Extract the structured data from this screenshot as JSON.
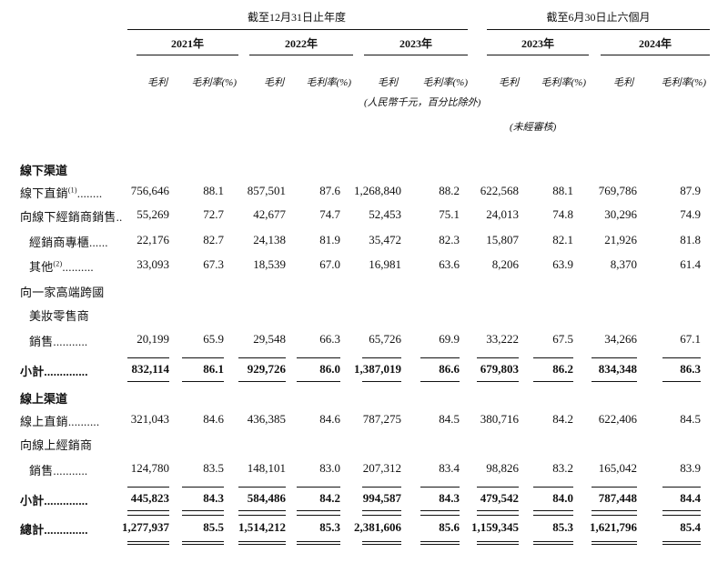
{
  "header": {
    "group_fy": "截至12月31日止年度",
    "group_hy": "截至6月30日止六個月",
    "years": [
      "2021年",
      "2022年",
      "2023年",
      "2023年",
      "2024年"
    ],
    "col_gp": "毛利",
    "col_gm": "毛利率(%)",
    "unit_note": "(人民幣千元，百分比除外)",
    "unaudited_note": "(未經審核)"
  },
  "sections": {
    "offline": "線下渠道",
    "online": "線上渠道"
  },
  "rows": [
    {
      "label": "線下直銷",
      "sup": "(1)",
      "dots": "........",
      "values": [
        "756,646",
        "88.1",
        "857,501",
        "87.6",
        "1,268,840",
        "88.2",
        "622,568",
        "88.1",
        "769,786",
        "87.9"
      ]
    },
    {
      "label": "向線下經銷商銷售",
      "sup": "",
      "dots": "..",
      "values": [
        "55,269",
        "72.7",
        "42,677",
        "74.7",
        "52,453",
        "75.1",
        "24,013",
        "74.8",
        "30,296",
        "74.9"
      ]
    },
    {
      "label": "經銷商專櫃",
      "sup": "",
      "dots": "......",
      "values": [
        "22,176",
        "82.7",
        "24,138",
        "81.9",
        "35,472",
        "82.3",
        "15,807",
        "82.1",
        "21,926",
        "81.8"
      ]
    },
    {
      "label": "其他",
      "sup": "(2)",
      "dots": "..........",
      "values": [
        "33,093",
        "67.3",
        "18,539",
        "67.0",
        "16,981",
        "63.6",
        "8,206",
        "63.9",
        "8,370",
        "61.4"
      ]
    },
    {
      "label": "向一家高端跨國",
      "sup": "",
      "dots": "",
      "values": []
    },
    {
      "label": "美妝零售商",
      "sup": "",
      "dots": "",
      "values": []
    },
    {
      "label": "銷售",
      "sup": "",
      "dots": "...........",
      "values": [
        "20,199",
        "65.9",
        "29,548",
        "66.3",
        "65,726",
        "69.9",
        "33,222",
        "67.5",
        "34,266",
        "67.1"
      ]
    },
    {
      "label": "小計",
      "sup": "",
      "dots": "..............",
      "values": [
        "832,114",
        "86.1",
        "929,726",
        "86.0",
        "1,387,019",
        "86.6",
        "679,803",
        "86.2",
        "834,348",
        "86.3"
      ]
    },
    {
      "label": "線上直銷",
      "sup": "",
      "dots": "..........",
      "values": [
        "321,043",
        "84.6",
        "436,385",
        "84.6",
        "787,275",
        "84.5",
        "380,716",
        "84.2",
        "622,406",
        "84.5"
      ]
    },
    {
      "label": "向線上經銷商",
      "sup": "",
      "dots": "",
      "values": []
    },
    {
      "label": "銷售",
      "sup": "",
      "dots": "...........",
      "values": [
        "124,780",
        "83.5",
        "148,101",
        "83.0",
        "207,312",
        "83.4",
        "98,826",
        "83.2",
        "165,042",
        "83.9"
      ]
    },
    {
      "label": "小計",
      "sup": "",
      "dots": "..............",
      "values": [
        "445,823",
        "84.3",
        "584,486",
        "84.2",
        "994,587",
        "84.3",
        "479,542",
        "84.0",
        "787,448",
        "84.4"
      ]
    },
    {
      "label": "總計",
      "sup": "",
      "dots": "..............",
      "values": [
        "1,277,937",
        "85.5",
        "1,514,212",
        "85.3",
        "2,381,606",
        "85.6",
        "1,159,345",
        "85.3",
        "1,621,796",
        "85.4"
      ]
    }
  ]
}
